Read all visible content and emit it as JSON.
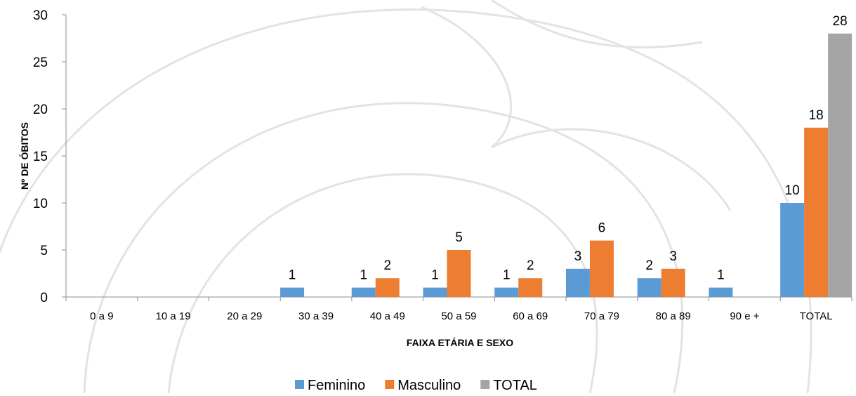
{
  "chart_data": {
    "type": "bar",
    "title": "",
    "xlabel": "FAIXA ETÁRIA E SEXO",
    "ylabel": "Nº DE ÓBITOS",
    "ylim": [
      0,
      30
    ],
    "yticks": [
      0,
      5,
      10,
      15,
      20,
      25,
      30
    ],
    "grid": false,
    "legend_position": "bottom",
    "categories": [
      "0 a 9",
      "10 a 19",
      "20 a 29",
      "30 a 39",
      "40 a 49",
      "50 a 59",
      "60 a 69",
      "70 a 79",
      "80 a 89",
      "90 e +",
      "TOTAL"
    ],
    "series": [
      {
        "name": "Feminino",
        "color": "#5b9bd5",
        "values": [
          null,
          null,
          null,
          1,
          1,
          1,
          1,
          3,
          2,
          1,
          10
        ]
      },
      {
        "name": "Masculino",
        "color": "#ed7d31",
        "values": [
          null,
          null,
          null,
          null,
          2,
          5,
          2,
          6,
          3,
          null,
          18
        ]
      },
      {
        "name": "TOTAL",
        "color": "#a5a5a5",
        "values": [
          null,
          null,
          null,
          null,
          null,
          null,
          null,
          null,
          null,
          null,
          28
        ]
      }
    ]
  }
}
